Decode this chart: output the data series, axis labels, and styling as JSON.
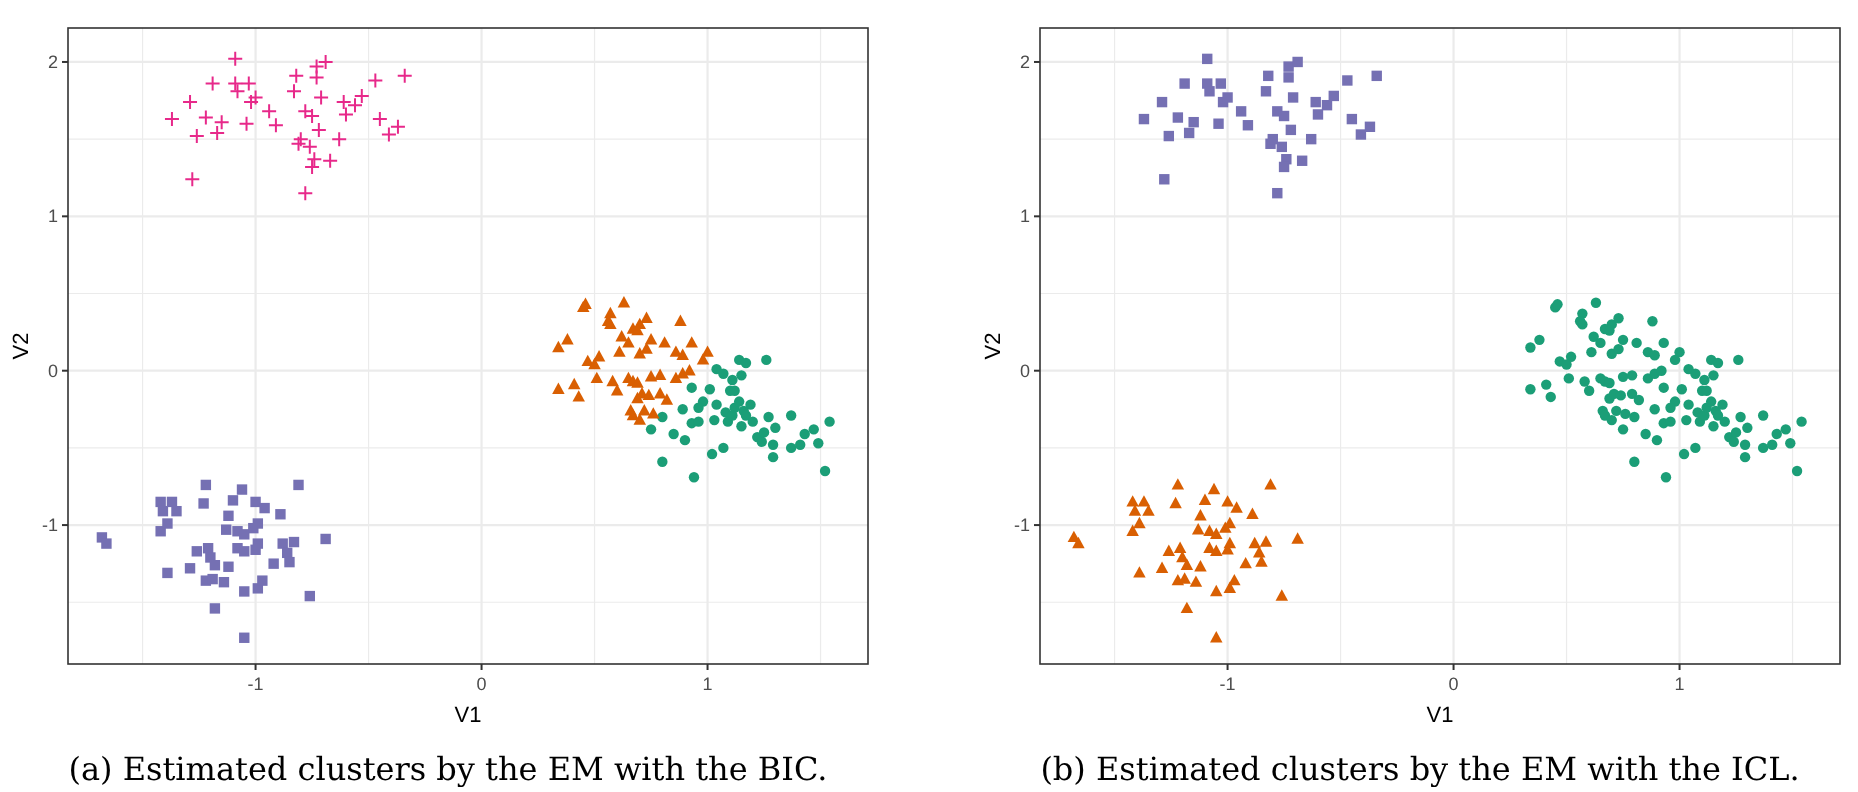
{
  "chart_data": [
    {
      "type": "scatter",
      "xlabel": "V1",
      "ylabel": "V2",
      "xlim": [
        -1.83,
        1.71
      ],
      "ylim": [
        -1.9,
        2.22
      ],
      "xticks": [
        {
          "value": -1.5,
          "label": null
        },
        -1,
        {
          "value": -0.5,
          "label": null
        },
        0,
        {
          "value": 0.5,
          "label": null
        },
        1,
        {
          "value": 1.5,
          "label": null
        }
      ],
      "yticks": [
        {
          "value": -1.5,
          "label": null
        },
        -1,
        {
          "value": -0.5,
          "label": null
        },
        0,
        {
          "value": 0.5,
          "label": null
        },
        1,
        {
          "value": 1.5,
          "label": null
        },
        2
      ],
      "grid": true,
      "annotations": [
        "(a) Estimated clusters by the EM with the BIC."
      ],
      "series": [
        {
          "color": "#1b9e77",
          "marker": "circle",
          "x": [
            1.14,
            1.17,
            1.26,
            1.04,
            1.07,
            1.11,
            1.15,
            0.93,
            1.01,
            1.1,
            1.12,
            0.89,
            0.8,
            0.75,
            0.8,
            0.85,
            0.9,
            0.94,
            0.98,
            0.96,
            0.93,
            0.96,
            1.04,
            1.03,
            1.02,
            1.07,
            1.08,
            1.09,
            1.11,
            1.12,
            1.14,
            1.16,
            1.17,
            1.15,
            1.19,
            1.2,
            1.22,
            1.24,
            1.25,
            1.27,
            1.29,
            1.29,
            1.3,
            1.37,
            1.37,
            1.41,
            1.43,
            1.47,
            1.49,
            1.54,
            1.52
          ],
          "values": [
            0.07,
            0.05,
            0.07,
            0.01,
            -0.02,
            -0.06,
            -0.03,
            -0.11,
            -0.12,
            -0.13,
            -0.13,
            -0.25,
            -0.3,
            -0.38,
            -0.59,
            -0.41,
            -0.45,
            -0.69,
            -0.2,
            -0.24,
            -0.34,
            -0.33,
            -0.22,
            -0.32,
            -0.54,
            -0.5,
            -0.27,
            -0.33,
            -0.29,
            -0.24,
            -0.2,
            -0.26,
            -0.29,
            -0.36,
            -0.22,
            -0.33,
            -0.43,
            -0.46,
            -0.4,
            -0.3,
            -0.48,
            -0.56,
            -0.37,
            -0.29,
            -0.5,
            -0.48,
            -0.41,
            -0.38,
            -0.47,
            -0.33,
            -0.65
          ]
        },
        {
          "color": "#d95f02",
          "marker": "triangle",
          "x": [
            0.45,
            0.46,
            0.63,
            0.57,
            0.56,
            0.57,
            0.7,
            0.73,
            0.67,
            0.69,
            0.88,
            0.38,
            0.34,
            0.62,
            0.65,
            0.61,
            0.7,
            0.73,
            0.75,
            0.81,
            0.86,
            0.89,
            0.93,
            1.0,
            0.98,
            0.47,
            0.52,
            0.5,
            0.51,
            0.58,
            0.6,
            0.65,
            0.67,
            0.69,
            0.75,
            0.79,
            0.86,
            0.89,
            0.92,
            0.34,
            0.41,
            0.43,
            0.69,
            0.71,
            0.74,
            0.79,
            0.82,
            0.66,
            0.67,
            0.7,
            0.72,
            0.76
          ],
          "values": [
            0.41,
            0.43,
            0.44,
            0.37,
            0.32,
            0.3,
            0.3,
            0.34,
            0.27,
            0.26,
            0.32,
            0.2,
            0.15,
            0.22,
            0.18,
            0.12,
            0.11,
            0.14,
            0.2,
            0.18,
            0.12,
            0.1,
            0.18,
            0.12,
            0.07,
            0.06,
            0.09,
            0.04,
            -0.05,
            -0.07,
            -0.13,
            -0.05,
            -0.07,
            -0.08,
            -0.04,
            -0.03,
            -0.05,
            -0.02,
            0.0,
            -0.12,
            -0.09,
            -0.17,
            -0.18,
            -0.15,
            -0.16,
            -0.15,
            -0.19,
            -0.26,
            -0.29,
            -0.32,
            -0.26,
            -0.28
          ]
        },
        {
          "color": "#7570b3",
          "marker": "square",
          "x": [
            -1.68,
            -1.66,
            -1.42,
            -1.41,
            -1.42,
            -1.39,
            -1.37,
            -1.35,
            -1.39,
            -1.29,
            -1.26,
            -1.22,
            -1.23,
            -1.21,
            -1.2,
            -1.22,
            -1.18,
            -1.18,
            -1.19,
            -1.14,
            -1.12,
            -1.13,
            -1.12,
            -1.1,
            -1.08,
            -1.08,
            -1.06,
            -1.05,
            -1.05,
            -1.05,
            -1.05,
            -1.01,
            -1.0,
            -0.99,
            -1.0,
            -0.99,
            -0.99,
            -0.97,
            -0.96,
            -0.92,
            -0.89,
            -0.88,
            -0.86,
            -0.85,
            -0.83,
            -0.81,
            -0.76,
            -0.69
          ],
          "values": [
            -1.08,
            -1.12,
            -0.85,
            -0.91,
            -1.04,
            -0.99,
            -0.85,
            -0.91,
            -1.31,
            -1.28,
            -1.17,
            -0.74,
            -0.86,
            -1.15,
            -1.21,
            -1.36,
            -1.26,
            -1.54,
            -1.35,
            -1.37,
            -1.27,
            -1.03,
            -0.94,
            -0.84,
            -1.04,
            -1.15,
            -0.77,
            -1.06,
            -1.17,
            -1.43,
            -1.73,
            -1.02,
            -1.16,
            -0.99,
            -0.85,
            -1.12,
            -1.41,
            -1.36,
            -0.89,
            -1.25,
            -0.93,
            -1.12,
            -1.18,
            -1.24,
            -1.11,
            -0.74,
            -1.46,
            -1.09
          ]
        },
        {
          "color": "#e7298a",
          "marker": "cross",
          "x": [
            -1.09,
            -1.19,
            -1.29,
            -1.37,
            -1.28,
            -1.26,
            -1.22,
            -1.17,
            -1.15,
            -1.09,
            -1.08,
            -1.03,
            -1.02,
            -1.0,
            -1.04,
            -0.94,
            -0.91,
            -0.83,
            -0.82,
            -0.81,
            -0.78,
            -0.78,
            -0.76,
            -0.75,
            -0.74,
            -0.75,
            -0.73,
            -0.69,
            -0.73,
            -0.71,
            -0.72,
            -0.67,
            -0.63,
            -0.61,
            -0.6,
            -0.56,
            -0.53,
            -0.47,
            -0.45,
            -0.41,
            -0.37,
            -0.34,
            -0.8
          ],
          "values": [
            2.02,
            1.86,
            1.74,
            1.63,
            1.24,
            1.52,
            1.64,
            1.54,
            1.61,
            1.86,
            1.81,
            1.86,
            1.74,
            1.77,
            1.6,
            1.68,
            1.59,
            1.81,
            1.91,
            1.47,
            1.68,
            1.15,
            1.45,
            1.65,
            1.37,
            1.32,
            1.97,
            2.0,
            1.9,
            1.77,
            1.56,
            1.36,
            1.5,
            1.74,
            1.66,
            1.72,
            1.78,
            1.88,
            1.63,
            1.53,
            1.58,
            1.91,
            1.5
          ]
        }
      ]
    },
    {
      "type": "scatter",
      "xlabel": "V1",
      "ylabel": "V2",
      "xlim": [
        -1.83,
        1.71
      ],
      "ylim": [
        -1.9,
        2.22
      ],
      "xticks": [
        {
          "value": -1.5,
          "label": null
        },
        -1,
        {
          "value": -0.5,
          "label": null
        },
        0,
        {
          "value": 0.5,
          "label": null
        },
        1,
        {
          "value": 1.5,
          "label": null
        }
      ],
      "yticks": [
        {
          "value": -1.5,
          "label": null
        },
        -1,
        {
          "value": -0.5,
          "label": null
        },
        0,
        {
          "value": 0.5,
          "label": null
        },
        1,
        {
          "value": 1.5,
          "label": null
        },
        2
      ],
      "grid": true,
      "annotations": [
        "(b) Estimated clusters by the EM with the ICL."
      ],
      "series": [
        {
          "color": "#1b9e77",
          "marker": "circle",
          "x": [
            1.14,
            1.17,
            1.26,
            1.04,
            1.07,
            1.11,
            1.15,
            0.93,
            1.01,
            1.1,
            1.12,
            0.89,
            0.8,
            0.75,
            0.8,
            0.85,
            0.9,
            0.94,
            0.98,
            0.96,
            0.93,
            0.96,
            1.04,
            1.03,
            1.02,
            1.07,
            1.08,
            1.09,
            1.11,
            1.12,
            1.14,
            1.16,
            1.17,
            1.15,
            1.19,
            1.2,
            1.22,
            1.24,
            1.25,
            1.27,
            1.29,
            1.29,
            1.3,
            1.37,
            1.37,
            1.41,
            1.43,
            1.47,
            1.49,
            1.54,
            1.52,
            0.45,
            0.46,
            0.63,
            0.57,
            0.56,
            0.57,
            0.7,
            0.73,
            0.67,
            0.69,
            0.88,
            0.38,
            0.34,
            0.62,
            0.65,
            0.61,
            0.7,
            0.73,
            0.75,
            0.81,
            0.86,
            0.89,
            0.93,
            1.0,
            0.98,
            0.47,
            0.52,
            0.5,
            0.51,
            0.58,
            0.6,
            0.65,
            0.67,
            0.69,
            0.75,
            0.79,
            0.86,
            0.89,
            0.92,
            0.34,
            0.41,
            0.43,
            0.69,
            0.71,
            0.74,
            0.79,
            0.82,
            0.66,
            0.67,
            0.7,
            0.72,
            0.76
          ],
          "values": [
            0.07,
            0.05,
            0.07,
            0.01,
            -0.02,
            -0.06,
            -0.03,
            -0.11,
            -0.12,
            -0.13,
            -0.13,
            -0.25,
            -0.3,
            -0.38,
            -0.59,
            -0.41,
            -0.45,
            -0.69,
            -0.2,
            -0.24,
            -0.34,
            -0.33,
            -0.22,
            -0.32,
            -0.54,
            -0.5,
            -0.27,
            -0.33,
            -0.29,
            -0.24,
            -0.2,
            -0.26,
            -0.29,
            -0.36,
            -0.22,
            -0.33,
            -0.43,
            -0.46,
            -0.4,
            -0.3,
            -0.48,
            -0.56,
            -0.37,
            -0.29,
            -0.5,
            -0.48,
            -0.41,
            -0.38,
            -0.47,
            -0.33,
            -0.65,
            0.41,
            0.43,
            0.44,
            0.37,
            0.32,
            0.3,
            0.3,
            0.34,
            0.27,
            0.26,
            0.32,
            0.2,
            0.15,
            0.22,
            0.18,
            0.12,
            0.11,
            0.14,
            0.2,
            0.18,
            0.12,
            0.1,
            0.18,
            0.12,
            0.07,
            0.06,
            0.09,
            0.04,
            -0.05,
            -0.07,
            -0.13,
            -0.05,
            -0.07,
            -0.08,
            -0.04,
            -0.03,
            -0.05,
            -0.02,
            0.0,
            -0.12,
            -0.09,
            -0.17,
            -0.18,
            -0.15,
            -0.16,
            -0.15,
            -0.19,
            -0.26,
            -0.29,
            -0.32,
            -0.26,
            -0.28
          ]
        },
        {
          "color": "#d95f02",
          "marker": "triangle",
          "x": [
            -1.68,
            -1.66,
            -1.42,
            -1.41,
            -1.42,
            -1.39,
            -1.37,
            -1.35,
            -1.39,
            -1.29,
            -1.26,
            -1.22,
            -1.23,
            -1.21,
            -1.2,
            -1.22,
            -1.18,
            -1.18,
            -1.19,
            -1.14,
            -1.12,
            -1.13,
            -1.12,
            -1.1,
            -1.08,
            -1.08,
            -1.06,
            -1.05,
            -1.05,
            -1.05,
            -1.05,
            -1.01,
            -1.0,
            -0.99,
            -1.0,
            -0.99,
            -0.99,
            -0.97,
            -0.96,
            -0.92,
            -0.89,
            -0.88,
            -0.86,
            -0.85,
            -0.83,
            -0.81,
            -0.76,
            -0.69
          ],
          "values": [
            -1.08,
            -1.12,
            -0.85,
            -0.91,
            -1.04,
            -0.99,
            -0.85,
            -0.91,
            -1.31,
            -1.28,
            -1.17,
            -0.74,
            -0.86,
            -1.15,
            -1.21,
            -1.36,
            -1.26,
            -1.54,
            -1.35,
            -1.37,
            -1.27,
            -1.03,
            -0.94,
            -0.84,
            -1.04,
            -1.15,
            -0.77,
            -1.06,
            -1.17,
            -1.43,
            -1.73,
            -1.02,
            -1.16,
            -0.99,
            -0.85,
            -1.12,
            -1.41,
            -1.36,
            -0.89,
            -1.25,
            -0.93,
            -1.12,
            -1.18,
            -1.24,
            -1.11,
            -0.74,
            -1.46,
            -1.09
          ]
        },
        {
          "color": "#7570b3",
          "marker": "square",
          "x": [
            -1.09,
            -1.19,
            -1.29,
            -1.37,
            -1.28,
            -1.26,
            -1.22,
            -1.17,
            -1.15,
            -1.09,
            -1.08,
            -1.03,
            -1.02,
            -1.0,
            -1.04,
            -0.94,
            -0.91,
            -0.83,
            -0.82,
            -0.81,
            -0.78,
            -0.78,
            -0.76,
            -0.75,
            -0.74,
            -0.75,
            -0.73,
            -0.69,
            -0.73,
            -0.71,
            -0.72,
            -0.67,
            -0.63,
            -0.61,
            -0.6,
            -0.56,
            -0.53,
            -0.47,
            -0.45,
            -0.41,
            -0.37,
            -0.34,
            -0.8
          ],
          "values": [
            2.02,
            1.86,
            1.74,
            1.63,
            1.24,
            1.52,
            1.64,
            1.54,
            1.61,
            1.86,
            1.81,
            1.86,
            1.74,
            1.77,
            1.6,
            1.68,
            1.59,
            1.81,
            1.91,
            1.47,
            1.68,
            1.15,
            1.45,
            1.65,
            1.37,
            1.32,
            1.97,
            2.0,
            1.9,
            1.77,
            1.56,
            1.36,
            1.5,
            1.74,
            1.66,
            1.72,
            1.78,
            1.88,
            1.63,
            1.53,
            1.58,
            1.91,
            1.5
          ]
        }
      ]
    }
  ]
}
